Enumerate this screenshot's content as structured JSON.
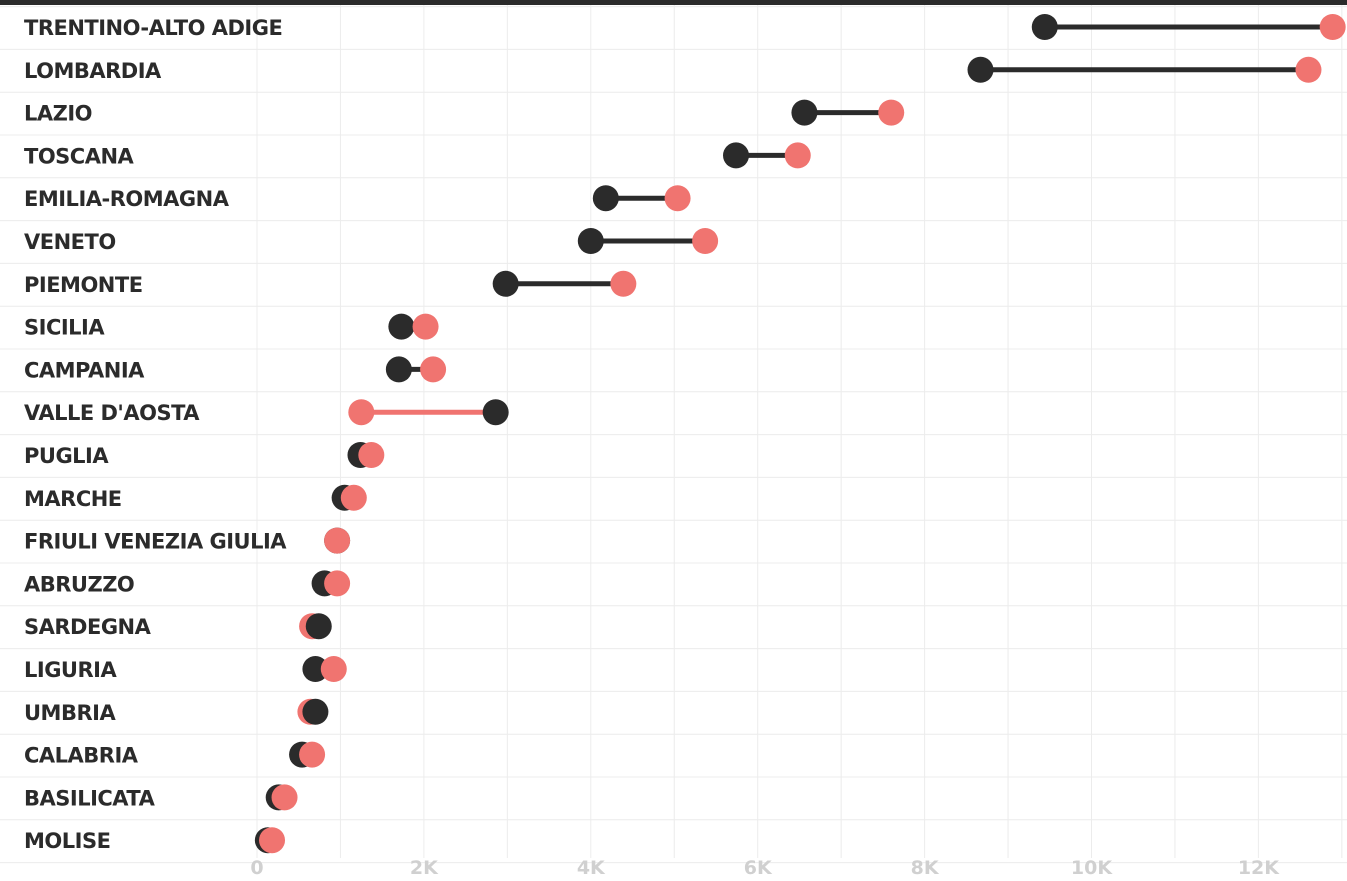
{
  "colors": {
    "top_bar": "#2b2b2b",
    "series_dark": "#2b2b2b",
    "series_coral": "#f07470",
    "grid": "#ececec",
    "row_label": "#2b2b2b",
    "tick_label": "#d0d0d0"
  },
  "chart_data": {
    "type": "dumbbell",
    "title": "",
    "xlabel": "",
    "ylabel": "",
    "xlim": [
      0,
      13000
    ],
    "grid": true,
    "legend": "none",
    "x_ticks": [
      {
        "value": 0,
        "label": "0"
      },
      {
        "value": 2000,
        "label": "2K"
      },
      {
        "value": 4000,
        "label": "4K"
      },
      {
        "value": 6000,
        "label": "6K"
      },
      {
        "value": 8000,
        "label": "8K"
      },
      {
        "value": 10000,
        "label": "10K"
      },
      {
        "value": 12000,
        "label": "12K"
      }
    ],
    "categories": [
      "TRENTINO-ALTO ADIGE",
      "LOMBARDIA",
      "LAZIO",
      "TOSCANA",
      "EMILIA-ROMAGNA",
      "VENETO",
      "PIEMONTE",
      "SICILIA",
      "CAMPANIA",
      "VALLE D'AOSTA",
      "PUGLIA",
      "MARCHE",
      "FRIULI VENEZIA GIULIA",
      "ABRUZZO",
      "SARDEGNA",
      "LIGURIA",
      "UMBRIA",
      "CALABRIA",
      "BASILICATA",
      "MOLISE"
    ],
    "series": [
      {
        "values": [
          9440,
          8670,
          6560,
          5740,
          4180,
          4000,
          2980,
          1730,
          1700,
          2860,
          1240,
          1050,
          960,
          810,
          740,
          700,
          700,
          540,
          260,
          130
        ]
      },
      {
        "values": [
          12890,
          12600,
          7600,
          6480,
          5040,
          5370,
          4390,
          2020,
          2110,
          1250,
          1370,
          1160,
          960,
          960,
          660,
          920,
          640,
          660,
          330,
          180
        ]
      }
    ]
  }
}
